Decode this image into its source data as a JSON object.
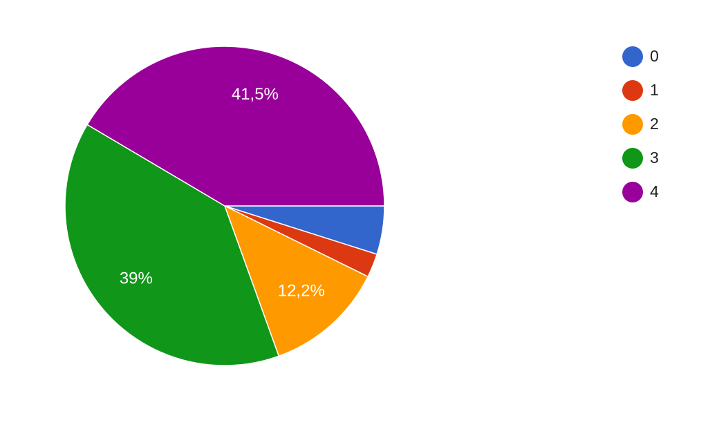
{
  "chart_data": {
    "type": "pie",
    "categories": [
      "0",
      "1",
      "2",
      "3",
      "4"
    ],
    "values": [
      4.9,
      2.4,
      12.2,
      39,
      41.5
    ],
    "value_labels": [
      null,
      null,
      "12,2%",
      "39%",
      "41,5%"
    ],
    "colors": [
      "#3366cc",
      "#dc3912",
      "#ff9900",
      "#109618",
      "#990099"
    ]
  }
}
